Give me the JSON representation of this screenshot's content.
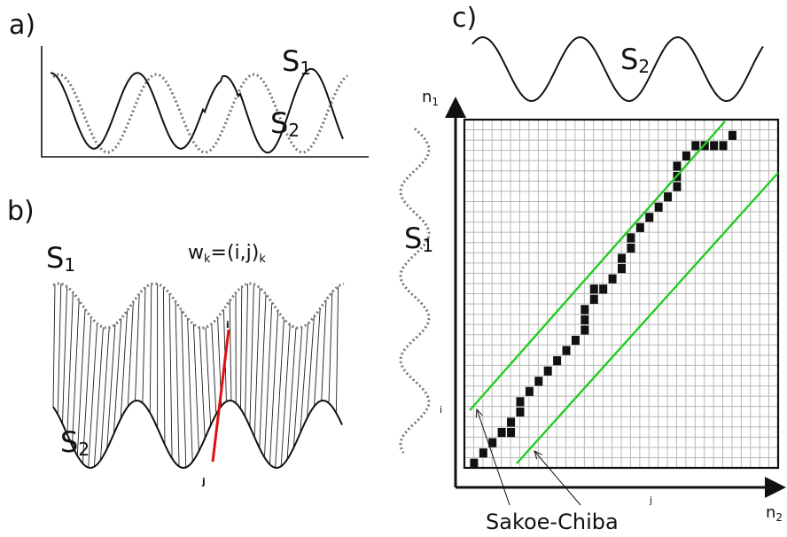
{
  "panels": {
    "a": {
      "tag": "a)",
      "s1": "S",
      "s1_sub": "1",
      "s2": "S",
      "s2_sub": "2"
    },
    "b": {
      "tag": "b)",
      "s1": "S",
      "s1_sub": "1",
      "s2": "S",
      "s2_sub": "2",
      "warp_prefix": "w",
      "warp_k": "k",
      "warp_mid": "=(i,j)",
      "warp_k2": "k",
      "i_mark": "i",
      "j_mark": "j"
    },
    "c": {
      "tag": "c)",
      "s2": "S",
      "s2_sub": "2",
      "s1": "S",
      "s1_sub": "1",
      "y_axis": "n",
      "y_axis_sub": "1",
      "x_axis": "n",
      "x_axis_sub": "2",
      "i_mark": "i",
      "j_mark": "j",
      "band_label": "Sakoe-Chiba"
    }
  },
  "colors": {
    "ink": "#111111",
    "band": "#22cc22",
    "warp_highlight": "#e01010",
    "grid": "#b8b8b8"
  },
  "grid": {
    "cells": 34
  }
}
